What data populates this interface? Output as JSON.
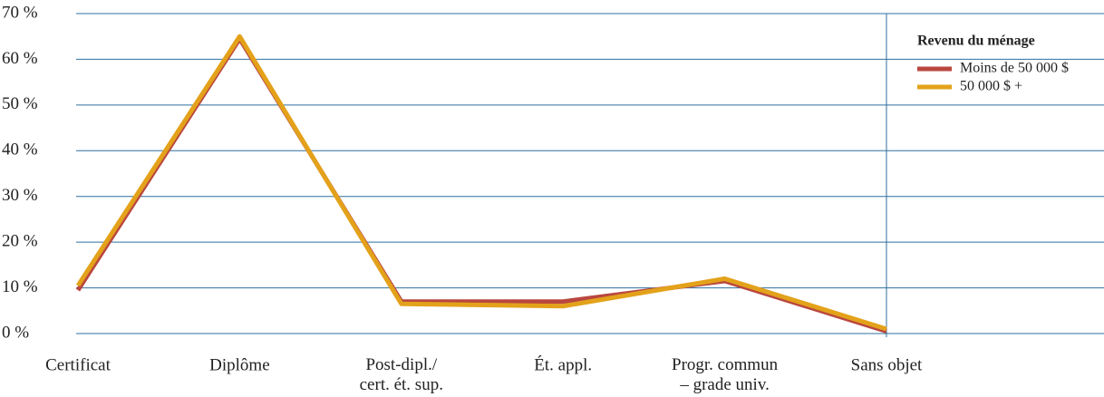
{
  "chart_data": {
    "type": "line",
    "categories": [
      "Certificat",
      "Diplôme",
      "Post-dipl./\ncert. ét. sup.",
      "Ét. appl.",
      "Progr. commun\n– grade univ.",
      "Sans objet"
    ],
    "series": [
      {
        "name": "Moins de 50 000 $",
        "color": "#b9473f",
        "values": [
          9.5,
          64.5,
          7,
          7,
          11.5,
          0.5
        ]
      },
      {
        "name": "50 000 $ +",
        "color": "#e3a21a",
        "values": [
          10.5,
          65,
          6.5,
          6,
          12,
          1
        ]
      }
    ],
    "ylim": [
      0,
      70
    ],
    "yticks": [
      {
        "value": 0,
        "label": "0 %"
      },
      {
        "value": 10,
        "label": "10 %"
      },
      {
        "value": 20,
        "label": "20 %"
      },
      {
        "value": 30,
        "label": "30 %"
      },
      {
        "value": 40,
        "label": "40 %"
      },
      {
        "value": 50,
        "label": "50 %"
      },
      {
        "value": 60,
        "label": "60 %"
      },
      {
        "value": 70,
        "label": "70 %"
      }
    ],
    "grid": true,
    "legend": {
      "title": "Revenu du ménage",
      "position": "upper right"
    }
  }
}
